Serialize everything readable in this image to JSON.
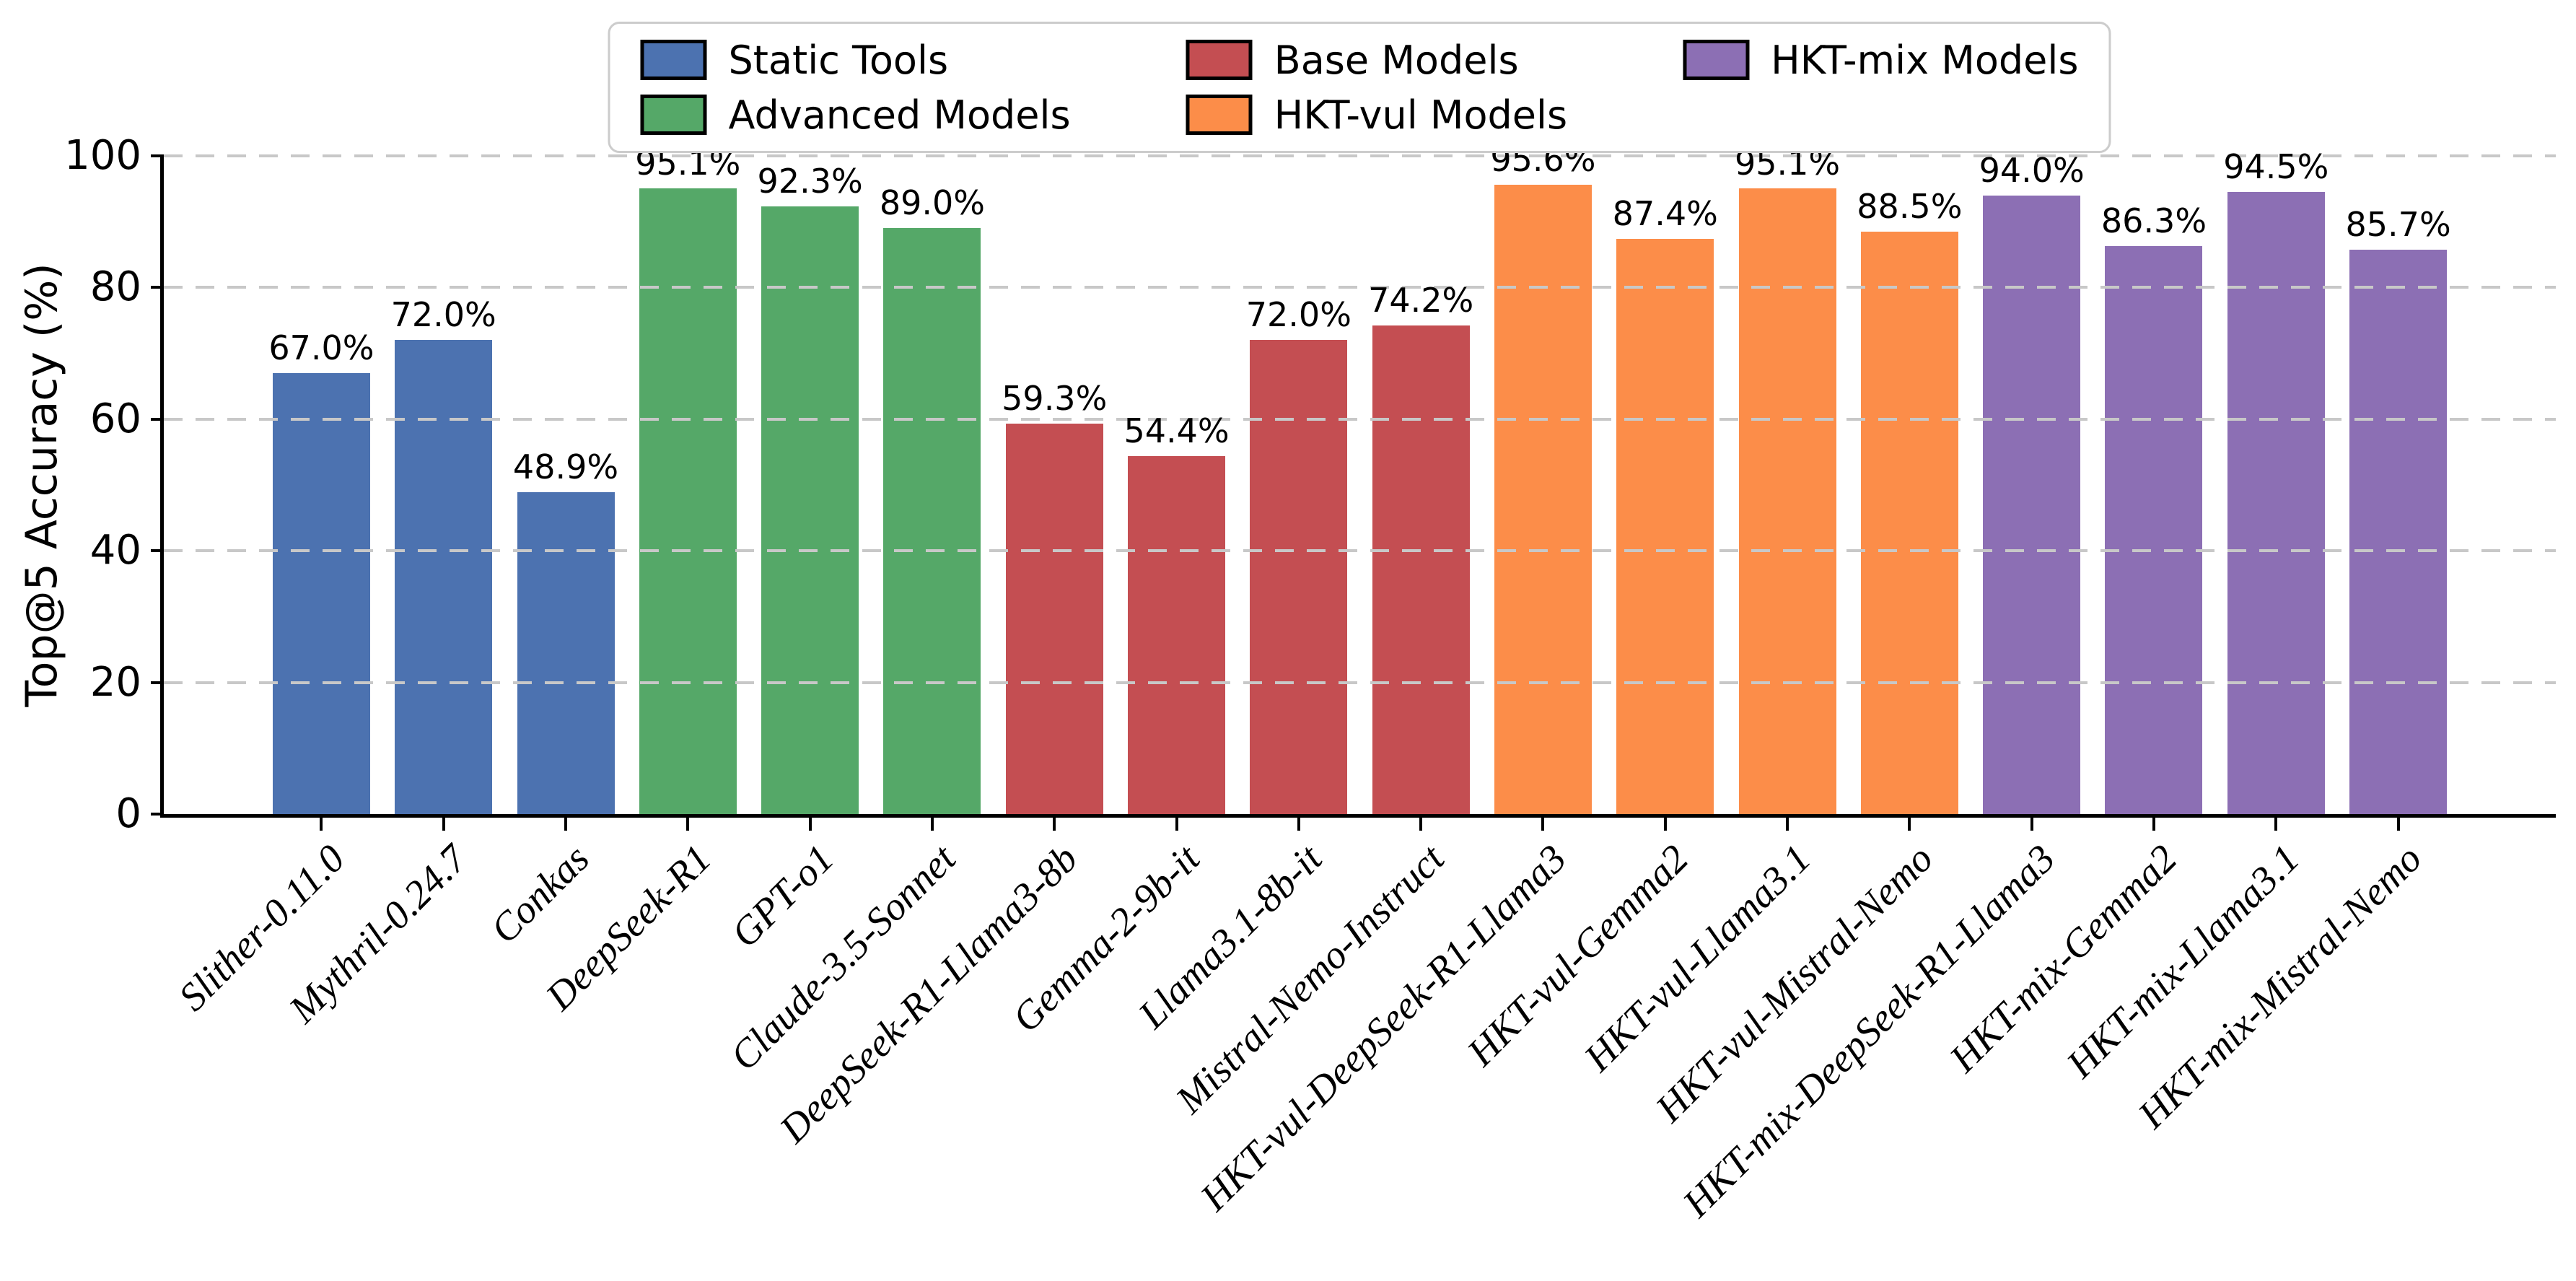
{
  "chart_data": {
    "type": "bar",
    "title": "",
    "ylabel": "Top@5 Accuracy (%)",
    "xlabel": "",
    "ylim": [
      0,
      100
    ],
    "yticks": [
      0,
      20,
      40,
      60,
      80,
      100
    ],
    "grid": {
      "axis": "y",
      "style": "dashed",
      "color": "#C8C8C8",
      "drawn_over_bars": true
    },
    "legend": {
      "position": "top-center",
      "entries": [
        {
          "label": "Static Tools",
          "color": "#4C72B0"
        },
        {
          "label": "Advanced Models",
          "color": "#55A868"
        },
        {
          "label": "Base Models",
          "color": "#C44E52"
        },
        {
          "label": "HKT-vul Models",
          "color": "#FC8D49"
        },
        {
          "label": "HKT-mix Models",
          "color": "#8C6FB4"
        }
      ]
    },
    "group_colors": {
      "Static Tools": "#4C72B0",
      "Advanced Models": "#55A868",
      "Base Models": "#C44E52",
      "HKT-vul Models": "#FC8D49",
      "HKT-mix Models": "#8C6FB4"
    },
    "categories": [
      "Slither-0.11.0",
      "Mythril-0.24.7",
      "Conkas",
      "DeepSeek-R1",
      "GPT-o1",
      "Claude-3.5-Sonnet",
      "DeepSeek-R1-Llama3-8b",
      "Gemma-2-9b-it",
      "Llama3.1-8b-it",
      "Mistral-Nemo-Instruct",
      "HKT-vul-DeepSeek-R1-Llama3",
      "HKT-vul-Gemma2",
      "HKT-vul-Llama3.1",
      "HKT-vul-Mistral-Nemo",
      "HKT-mix-DeepSeek-R1-Llama3",
      "HKT-mix-Gemma2",
      "HKT-mix-Llama3.1",
      "HKT-mix-Mistral-Nemo"
    ],
    "values": [
      67.0,
      72.0,
      48.9,
      95.1,
      92.3,
      89.0,
      59.3,
      54.4,
      72.0,
      74.2,
      95.6,
      87.4,
      95.1,
      88.5,
      94.0,
      86.3,
      94.5,
      85.7
    ],
    "bars": [
      {
        "category": "Slither-0.11.0",
        "value": 67.0,
        "display": "67.0%",
        "group": "Static Tools"
      },
      {
        "category": "Mythril-0.24.7",
        "value": 72.0,
        "display": "72.0%",
        "group": "Static Tools"
      },
      {
        "category": "Conkas",
        "value": 48.9,
        "display": "48.9%",
        "group": "Static Tools"
      },
      {
        "category": "DeepSeek-R1",
        "value": 95.1,
        "display": "95.1%",
        "group": "Advanced Models"
      },
      {
        "category": "GPT-o1",
        "value": 92.3,
        "display": "92.3%",
        "group": "Advanced Models"
      },
      {
        "category": "Claude-3.5-Sonnet",
        "value": 89.0,
        "display": "89.0%",
        "group": "Advanced Models"
      },
      {
        "category": "DeepSeek-R1-Llama3-8b",
        "value": 59.3,
        "display": "59.3%",
        "group": "Base Models"
      },
      {
        "category": "Gemma-2-9b-it",
        "value": 54.4,
        "display": "54.4%",
        "group": "Base Models"
      },
      {
        "category": "Llama3.1-8b-it",
        "value": 72.0,
        "display": "72.0%",
        "group": "Base Models"
      },
      {
        "category": "Mistral-Nemo-Instruct",
        "value": 74.2,
        "display": "74.2%",
        "group": "Base Models"
      },
      {
        "category": "HKT-vul-DeepSeek-R1-Llama3",
        "value": 95.6,
        "display": "95.6%",
        "group": "HKT-vul Models"
      },
      {
        "category": "HKT-vul-Gemma2",
        "value": 87.4,
        "display": "87.4%",
        "group": "HKT-vul Models"
      },
      {
        "category": "HKT-vul-Llama3.1",
        "value": 95.1,
        "display": "95.1%",
        "group": "HKT-vul Models"
      },
      {
        "category": "HKT-vul-Mistral-Nemo",
        "value": 88.5,
        "display": "88.5%",
        "group": "HKT-vul Models"
      },
      {
        "category": "HKT-mix-DeepSeek-R1-Llama3",
        "value": 94.0,
        "display": "94.0%",
        "group": "HKT-mix Models"
      },
      {
        "category": "HKT-mix-Gemma2",
        "value": 86.3,
        "display": "86.3%",
        "group": "HKT-mix Models"
      },
      {
        "category": "HKT-mix-Llama3.1",
        "value": 94.5,
        "display": "94.5%",
        "group": "HKT-mix Models"
      },
      {
        "category": "HKT-mix-Mistral-Nemo",
        "value": 85.7,
        "display": "85.7%",
        "group": "HKT-mix Models"
      }
    ]
  }
}
